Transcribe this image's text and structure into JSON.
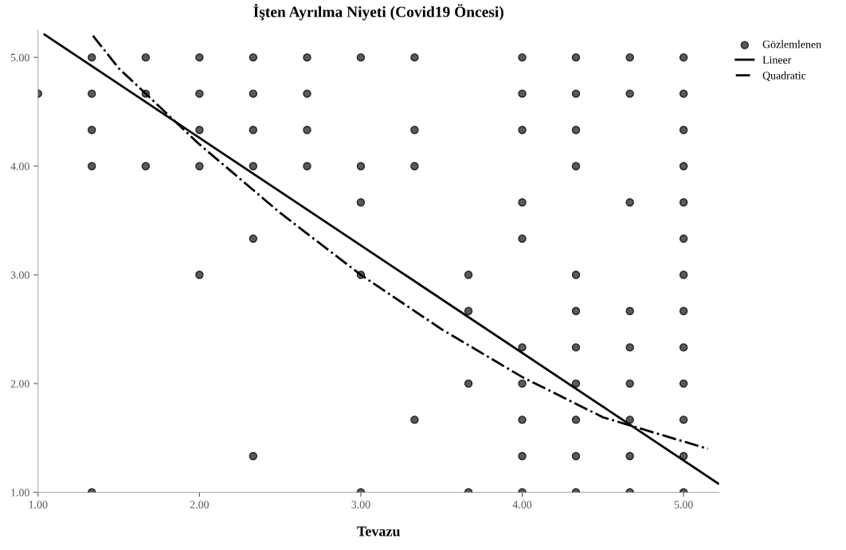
{
  "chart_data": {
    "type": "scatter",
    "title": "İşten Ayrılma Niyeti (Covid19 Öncesi)",
    "xlabel": "Tevazu",
    "xlim": [
      1,
      5.22
    ],
    "ylim": [
      1,
      5.25
    ],
    "xticks": [
      {
        "value": 1,
        "label": "1.00"
      },
      {
        "value": 2,
        "label": "2.00"
      },
      {
        "value": 3,
        "label": "3.00"
      },
      {
        "value": 4,
        "label": "4.00"
      },
      {
        "value": 5,
        "label": "5.00"
      }
    ],
    "yticks": [
      {
        "value": 1,
        "label": "1.00"
      },
      {
        "value": 2,
        "label": "2.00"
      },
      {
        "value": 3,
        "label": "3.00"
      },
      {
        "value": 4,
        "label": "4.00"
      },
      {
        "value": 5,
        "label": "5.00"
      }
    ],
    "grid": false,
    "legend": "top right",
    "series": [
      {
        "name": "Gözlemlenen",
        "marker": "circle",
        "color": "#5a5a5a",
        "x": [
          1.333,
          1.667,
          2,
          2.333,
          2.667,
          3,
          3.333,
          4,
          4.333,
          4.667,
          5,
          1,
          1.333,
          1.667,
          2,
          2.333,
          2.667,
          4,
          4.333,
          4.667,
          5,
          1.333,
          2,
          2.333,
          2.667,
          3.333,
          4,
          4.333,
          5,
          1.333,
          1.667,
          2,
          2.333,
          2.667,
          3,
          3.333,
          4.333,
          5,
          3,
          4,
          4.667,
          5,
          2.333,
          4,
          5,
          2,
          3,
          3.667,
          4.333,
          5,
          3.667,
          4.333,
          4.667,
          5,
          4,
          4.333,
          4.667,
          5,
          3.667,
          4,
          4.333,
          4.667,
          5,
          3.333,
          4,
          4.333,
          4.667,
          5,
          2.333,
          4,
          4.333,
          4.667,
          5,
          1.333,
          3,
          3.667,
          4,
          4.333,
          4.667,
          5
        ],
        "values": [
          5,
          5,
          5,
          5,
          5,
          5,
          5,
          5,
          5,
          5,
          5,
          4.667,
          4.667,
          4.667,
          4.667,
          4.667,
          4.667,
          4.667,
          4.667,
          4.667,
          4.667,
          4.333,
          4.333,
          4.333,
          4.333,
          4.333,
          4.333,
          4.333,
          4.333,
          4,
          4,
          4,
          4,
          4,
          4,
          4,
          4,
          4,
          3.667,
          3.667,
          3.667,
          3.667,
          3.333,
          3.333,
          3.333,
          3,
          3,
          3,
          3,
          3,
          2.667,
          2.667,
          2.667,
          2.667,
          2.333,
          2.333,
          2.333,
          2.333,
          2,
          2,
          2,
          2,
          2,
          1.667,
          1.667,
          1.667,
          1.667,
          1.667,
          1.333,
          1.333,
          1.333,
          1.333,
          1.333,
          1,
          1,
          1,
          1,
          1,
          1,
          1
        ]
      },
      {
        "name": "Lineer",
        "type": "line",
        "color": "#000000",
        "line_style": "solid",
        "x": [
          1.04,
          5.215
        ],
        "values": [
          5.21,
          1.08
        ]
      },
      {
        "name": "Quadratic",
        "type": "line",
        "color": "#000000",
        "line_style": "dashdot",
        "x": [
          1.34,
          1.5,
          2,
          2.5,
          3,
          3.5,
          4,
          4.5,
          5.15
        ],
        "values": [
          5.2,
          4.9,
          4.2,
          3.57,
          3.0,
          2.5,
          2.06,
          1.69,
          1.4
        ]
      }
    ]
  }
}
